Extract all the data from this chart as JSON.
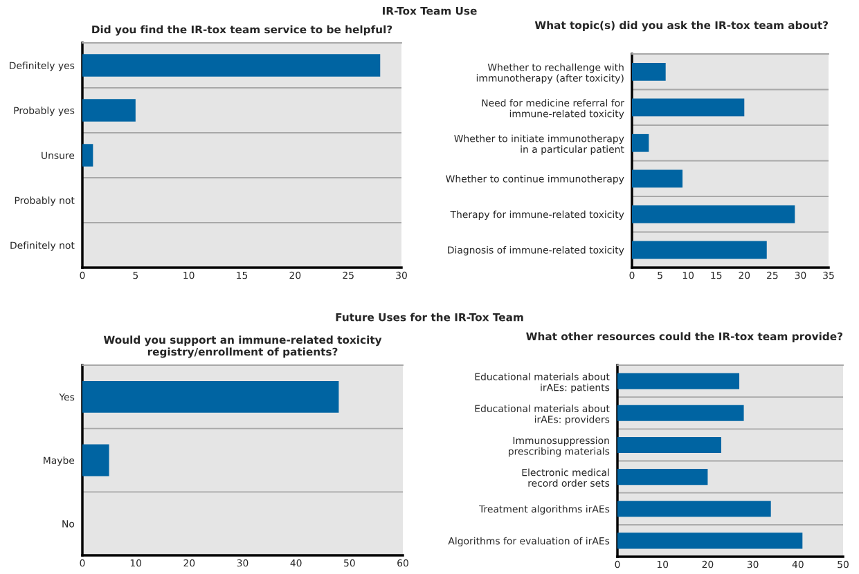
{
  "chart_data": [
    {
      "type": "bar",
      "orientation": "horizontal",
      "title": "Did you find the IR-tox team service to be helpful?",
      "annotations": [
        "IR-Tox Team Use"
      ],
      "categories": [
        "Definitely yes",
        "Probably yes",
        "Unsure",
        "Probably not",
        "Definitely not"
      ],
      "values": [
        28,
        5,
        1,
        0,
        0
      ],
      "color": "#0064a2",
      "xlim": [
        0,
        30
      ],
      "xticks": [
        0,
        5,
        10,
        15,
        20,
        25,
        30
      ],
      "grid": "y"
    },
    {
      "type": "bar",
      "orientation": "horizontal",
      "title": "What topic(s) did you ask the IR-tox team about?",
      "categories": [
        "Whether to rechallenge with\nimmunotherapy (after toxicity)",
        "Need for medicine referral for\nimmune-related toxicity",
        "Whether to initiate immunotherapy\nin a particular patient",
        "Whether to continue immunotherapy",
        "Therapy for immune-related toxicity",
        "Diagnosis of immune-related toxicity"
      ],
      "values": [
        6,
        20,
        3,
        9,
        29,
        24
      ],
      "color": "#0064a2",
      "xlim": [
        0,
        35
      ],
      "xticks": [
        0,
        5,
        10,
        15,
        20,
        25,
        30,
        35
      ],
      "grid": "y"
    },
    {
      "type": "bar",
      "orientation": "horizontal",
      "title": "Would you support an immune-related toxicity\nregistry/enrollment of patients?",
      "annotations": [
        "Future Uses for the IR-Tox Team"
      ],
      "categories": [
        "Yes",
        "Maybe",
        "No"
      ],
      "values": [
        48,
        5,
        0
      ],
      "color": "#0064a2",
      "xlim": [
        0,
        60
      ],
      "xticks": [
        0,
        10,
        20,
        30,
        40,
        50,
        60
      ],
      "grid": "y"
    },
    {
      "type": "bar",
      "orientation": "horizontal",
      "title": "What other resources could the IR-tox team provide?",
      "categories": [
        "Educational materials about\nirAEs: patients",
        "Educational materials about\nirAEs: providers",
        "Immunosuppression\nprescribing materials",
        "Electronic medical\nrecord order sets",
        "Treatment algorithms irAEs",
        "Algorithms for evaluation of irAEs"
      ],
      "values": [
        27,
        28,
        23,
        20,
        34,
        41
      ],
      "color": "#0064a2",
      "xlim": [
        0,
        50
      ],
      "xticks": [
        0,
        10,
        20,
        30,
        40,
        50
      ],
      "grid": "y"
    }
  ]
}
